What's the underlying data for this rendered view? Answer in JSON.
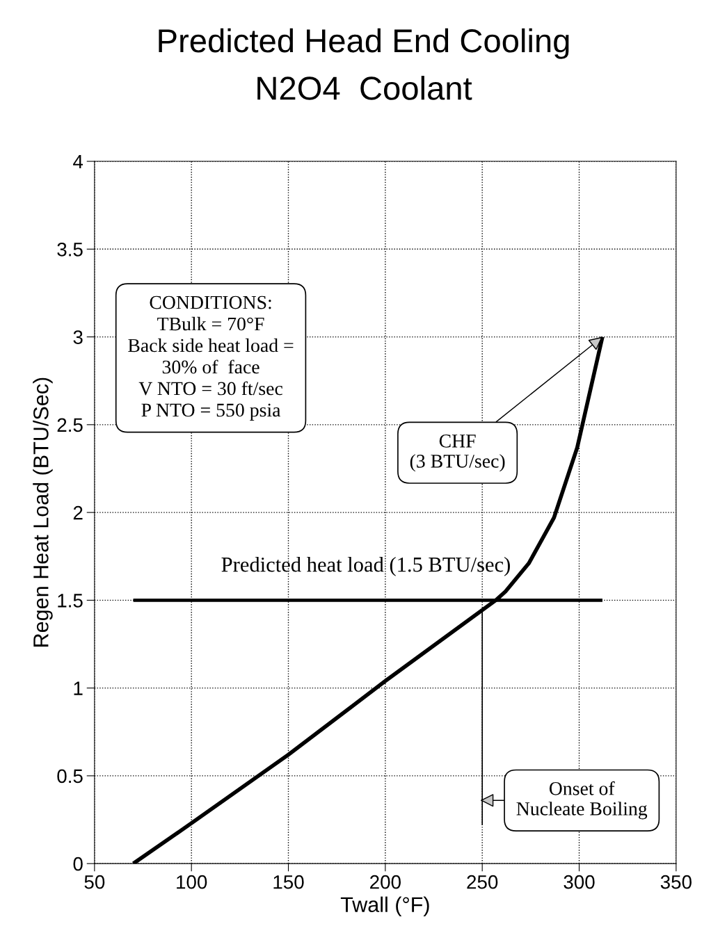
{
  "chart_data": {
    "type": "line",
    "title": "Predicted Head End Cooling",
    "subtitle": "N2O4  Coolant",
    "xlabel": "Twall (°F)",
    "ylabel": "Regen Heat Load (BTU/Sec)",
    "series": [
      {
        "color": "#000000",
        "x": [
          70,
          100,
          150,
          200,
          257,
          262,
          274,
          287,
          299,
          312
        ],
        "values": [
          0,
          0.23,
          0.62,
          1.04,
          1.5,
          1.55,
          1.71,
          1.97,
          2.37,
          3.0
        ]
      },
      {
        "color": "#000000",
        "x": [
          70,
          312
        ],
        "values": [
          1.5,
          1.5
        ]
      },
      {
        "color": "#000000",
        "x": [
          250,
          250
        ],
        "values": [
          0.22,
          1.44
        ]
      }
    ],
    "xlim": [
      50,
      350
    ],
    "xticks": [
      50,
      100,
      150,
      200,
      250,
      300,
      350
    ],
    "ylim": [
      0,
      4
    ],
    "yticks": [
      0,
      0.5,
      1,
      1.5,
      2,
      2.5,
      3,
      3.5,
      4
    ],
    "grid": true,
    "marker": "none",
    "line_style": "solid",
    "annotations": [
      {
        "text": "CHF\n(3 BTU/sec)",
        "x": 312,
        "y": 3.0
      },
      {
        "text": "Onset of\nNucleate Boiling",
        "x": 249,
        "y": 0.36
      },
      {
        "text": "Predicted heat load (1.5 BTU/sec)",
        "x": 190,
        "y": 1.5
      },
      "CONDITIONS:\nTBulk = 70°F\nBack side heat load =\n30% of  face\nV NTO = 30 ft/sec\nP NTO = 550 psia"
    ]
  }
}
